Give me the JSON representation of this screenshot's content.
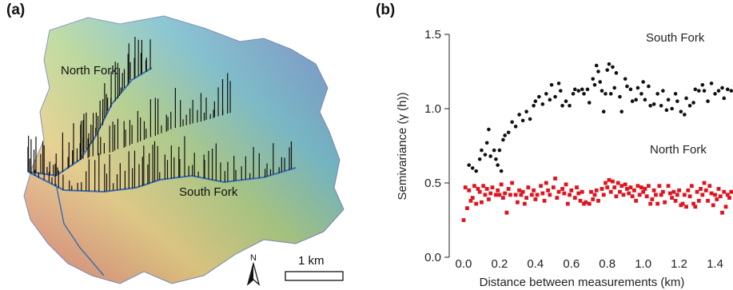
{
  "panels": {
    "a": {
      "label": "(a)"
    },
    "b": {
      "label": "(b)"
    }
  },
  "map": {
    "north_fork_label": "North Fork",
    "south_fork_label": "South Fork",
    "north_arrow_label": "N",
    "scale_label": "1 km",
    "colors": {
      "low": "#e8807a",
      "mid_low": "#f4d98a",
      "mid": "#a9d48a",
      "mid_high": "#7dc8d8",
      "high": "#8090d8",
      "stream": "#3d6fb0",
      "spikes": "#111111"
    }
  },
  "chart_data": {
    "type": "scatter",
    "xlabel": "Distance between measurements (km)",
    "ylabel": "Semivariance (γ (h))",
    "xlim": [
      -0.08,
      1.5
    ],
    "ylim": [
      0,
      1.5
    ],
    "xticks": [
      "0.0",
      "0.2",
      "0.4",
      "0.6",
      "0.8",
      "1.0",
      "1.2",
      "1.4"
    ],
    "yticks": [
      "0.0",
      "0.5",
      "1.0",
      "1.5"
    ],
    "series": [
      {
        "name": "South Fork",
        "color": "#111111",
        "marker": "circle",
        "points": [
          [
            0.03,
            0.62
          ],
          [
            0.05,
            0.6
          ],
          [
            0.07,
            0.58
          ],
          [
            0.09,
            0.66
          ],
          [
            0.1,
            0.72
          ],
          [
            0.12,
            0.69
          ],
          [
            0.13,
            0.77
          ],
          [
            0.14,
            0.86
          ],
          [
            0.15,
            0.68
          ],
          [
            0.17,
            0.72
          ],
          [
            0.18,
            0.66
          ],
          [
            0.19,
            0.62
          ],
          [
            0.2,
            0.72
          ],
          [
            0.21,
            0.58
          ],
          [
            0.22,
            0.79
          ],
          [
            0.23,
            0.82
          ],
          [
            0.25,
            0.84
          ],
          [
            0.27,
            0.91
          ],
          [
            0.29,
            0.88
          ],
          [
            0.31,
            0.96
          ],
          [
            0.33,
            0.92
          ],
          [
            0.35,
            0.98
          ],
          [
            0.37,
            0.93
          ],
          [
            0.39,
            1.02
          ],
          [
            0.4,
            1.05
          ],
          [
            0.42,
            1.08
          ],
          [
            0.44,
            1.03
          ],
          [
            0.46,
            1.1
          ],
          [
            0.48,
            1.06
          ],
          [
            0.49,
            1.16
          ],
          [
            0.51,
            1.08
          ],
          [
            0.53,
            1.17
          ],
          [
            0.54,
            1.12
          ],
          [
            0.55,
            1.02
          ],
          [
            0.57,
            1.05
          ],
          [
            0.59,
            1.02
          ],
          [
            0.61,
            1.1
          ],
          [
            0.62,
            1.13
          ],
          [
            0.64,
            1.12
          ],
          [
            0.66,
            1.13
          ],
          [
            0.67,
            1.1
          ],
          [
            0.69,
            1.13
          ],
          [
            0.7,
            1.04
          ],
          [
            0.72,
            1.2
          ],
          [
            0.73,
            1.16
          ],
          [
            0.74,
            1.29
          ],
          [
            0.75,
            1.25
          ],
          [
            0.76,
            1.18
          ],
          [
            0.77,
            1.12
          ],
          [
            0.78,
            0.98
          ],
          [
            0.79,
            1.1
          ],
          [
            0.8,
            1.26
          ],
          [
            0.81,
            1.3
          ],
          [
            0.82,
            1.1
          ],
          [
            0.83,
            1.28
          ],
          [
            0.84,
            1.14
          ],
          [
            0.85,
            1.24
          ],
          [
            0.87,
            1.08
          ],
          [
            0.88,
            0.98
          ],
          [
            0.9,
            1.2
          ],
          [
            0.91,
            1.15
          ],
          [
            0.93,
            1.13
          ],
          [
            0.94,
            1.05
          ],
          [
            0.96,
            1.06
          ],
          [
            0.97,
            1.14
          ],
          [
            0.99,
            1.1
          ],
          [
            1.0,
            1.18
          ],
          [
            1.01,
            1.06
          ],
          [
            1.03,
            1.15
          ],
          [
            1.04,
            1.02
          ],
          [
            1.06,
            1.03
          ],
          [
            1.08,
            1.1
          ],
          [
            1.1,
            1.02
          ],
          [
            1.11,
            1.12
          ],
          [
            1.13,
            0.99
          ],
          [
            1.14,
            1.06
          ],
          [
            1.16,
            1.0
          ],
          [
            1.18,
            1.1
          ],
          [
            1.19,
            1.05
          ],
          [
            1.21,
            0.98
          ],
          [
            1.23,
            0.96
          ],
          [
            1.24,
            1.07
          ],
          [
            1.26,
            1.02
          ],
          [
            1.28,
            1.04
          ],
          [
            1.29,
            1.13
          ],
          [
            1.31,
            1.12
          ],
          [
            1.33,
            1.16
          ],
          [
            1.34,
            1.12
          ],
          [
            1.36,
            1.05
          ],
          [
            1.38,
            1.17
          ],
          [
            1.4,
            1.1
          ],
          [
            1.42,
            1.12
          ],
          [
            1.44,
            1.14
          ],
          [
            1.45,
            1.07
          ],
          [
            1.47,
            1.13
          ],
          [
            1.49,
            1.12
          ]
        ]
      },
      {
        "name": "North Fork",
        "color": "#e0141e",
        "marker": "square",
        "points": [
          [
            0.0,
            0.25
          ],
          [
            0.01,
            0.47
          ],
          [
            0.02,
            0.33
          ],
          [
            0.03,
            0.45
          ],
          [
            0.04,
            0.38
          ],
          [
            0.05,
            0.4
          ],
          [
            0.06,
            0.48
          ],
          [
            0.07,
            0.36
          ],
          [
            0.08,
            0.46
          ],
          [
            0.09,
            0.44
          ],
          [
            0.1,
            0.37
          ],
          [
            0.11,
            0.48
          ],
          [
            0.12,
            0.42
          ],
          [
            0.13,
            0.46
          ],
          [
            0.14,
            0.39
          ],
          [
            0.15,
            0.43
          ],
          [
            0.16,
            0.47
          ],
          [
            0.18,
            0.42
          ],
          [
            0.19,
            0.45
          ],
          [
            0.2,
            0.42
          ],
          [
            0.21,
            0.49
          ],
          [
            0.22,
            0.4
          ],
          [
            0.23,
            0.43
          ],
          [
            0.24,
            0.3
          ],
          [
            0.25,
            0.46
          ],
          [
            0.26,
            0.42
          ],
          [
            0.27,
            0.5
          ],
          [
            0.29,
            0.42
          ],
          [
            0.3,
            0.37
          ],
          [
            0.31,
            0.45
          ],
          [
            0.32,
            0.42
          ],
          [
            0.33,
            0.44
          ],
          [
            0.34,
            0.36
          ],
          [
            0.35,
            0.4
          ],
          [
            0.36,
            0.47
          ],
          [
            0.38,
            0.42
          ],
          [
            0.39,
            0.45
          ],
          [
            0.4,
            0.39
          ],
          [
            0.41,
            0.42
          ],
          [
            0.43,
            0.48
          ],
          [
            0.44,
            0.43
          ],
          [
            0.45,
            0.38
          ],
          [
            0.46,
            0.5
          ],
          [
            0.47,
            0.45
          ],
          [
            0.48,
            0.42
          ],
          [
            0.5,
            0.47
          ],
          [
            0.51,
            0.53
          ],
          [
            0.52,
            0.4
          ],
          [
            0.53,
            0.44
          ],
          [
            0.55,
            0.46
          ],
          [
            0.56,
            0.43
          ],
          [
            0.57,
            0.49
          ],
          [
            0.58,
            0.36
          ],
          [
            0.59,
            0.42
          ],
          [
            0.6,
            0.45
          ],
          [
            0.62,
            0.4
          ],
          [
            0.63,
            0.47
          ],
          [
            0.64,
            0.43
          ],
          [
            0.65,
            0.38
          ],
          [
            0.66,
            0.44
          ],
          [
            0.67,
            0.36
          ],
          [
            0.68,
            0.37
          ],
          [
            0.7,
            0.36
          ],
          [
            0.71,
            0.44
          ],
          [
            0.72,
            0.39
          ],
          [
            0.73,
            0.42
          ],
          [
            0.74,
            0.45
          ],
          [
            0.75,
            0.38
          ],
          [
            0.77,
            0.46
          ],
          [
            0.78,
            0.42
          ],
          [
            0.79,
            0.5
          ],
          [
            0.8,
            0.47
          ],
          [
            0.81,
            0.52
          ],
          [
            0.82,
            0.44
          ],
          [
            0.83,
            0.51
          ],
          [
            0.84,
            0.47
          ],
          [
            0.85,
            0.41
          ],
          [
            0.86,
            0.5
          ],
          [
            0.87,
            0.44
          ],
          [
            0.88,
            0.48
          ],
          [
            0.89,
            0.42
          ],
          [
            0.9,
            0.49
          ],
          [
            0.91,
            0.46
          ],
          [
            0.92,
            0.43
          ],
          [
            0.93,
            0.47
          ],
          [
            0.94,
            0.41
          ],
          [
            0.95,
            0.45
          ],
          [
            0.96,
            0.38
          ],
          [
            0.97,
            0.48
          ],
          [
            0.98,
            0.42
          ],
          [
            0.99,
            0.47
          ],
          [
            1.0,
            0.44
          ],
          [
            1.01,
            0.46
          ],
          [
            1.02,
            0.41
          ],
          [
            1.03,
            0.48
          ],
          [
            1.04,
            0.36
          ],
          [
            1.05,
            0.39
          ],
          [
            1.06,
            0.45
          ],
          [
            1.07,
            0.42
          ],
          [
            1.08,
            0.36
          ],
          [
            1.09,
            0.48
          ],
          [
            1.1,
            0.42
          ],
          [
            1.11,
            0.44
          ],
          [
            1.12,
            0.37
          ],
          [
            1.14,
            0.48
          ],
          [
            1.15,
            0.43
          ],
          [
            1.16,
            0.4
          ],
          [
            1.17,
            0.44
          ],
          [
            1.18,
            0.38
          ],
          [
            1.19,
            0.42
          ],
          [
            1.2,
            0.45
          ],
          [
            1.21,
            0.35
          ],
          [
            1.22,
            0.36
          ],
          [
            1.23,
            0.42
          ],
          [
            1.24,
            0.34
          ],
          [
            1.25,
            0.45
          ],
          [
            1.26,
            0.41
          ],
          [
            1.27,
            0.48
          ],
          [
            1.28,
            0.36
          ],
          [
            1.29,
            0.34
          ],
          [
            1.3,
            0.44
          ],
          [
            1.31,
            0.38
          ],
          [
            1.32,
            0.46
          ],
          [
            1.33,
            0.42
          ],
          [
            1.34,
            0.5
          ],
          [
            1.35,
            0.45
          ],
          [
            1.36,
            0.38
          ],
          [
            1.37,
            0.48
          ],
          [
            1.38,
            0.43
          ],
          [
            1.39,
            0.35
          ],
          [
            1.4,
            0.42
          ],
          [
            1.41,
            0.39
          ],
          [
            1.42,
            0.46
          ],
          [
            1.43,
            0.41
          ],
          [
            1.44,
            0.3
          ],
          [
            1.45,
            0.44
          ],
          [
            1.46,
            0.34
          ],
          [
            1.47,
            0.42
          ],
          [
            1.48,
            0.4
          ],
          [
            1.49,
            0.44
          ]
        ]
      }
    ]
  }
}
